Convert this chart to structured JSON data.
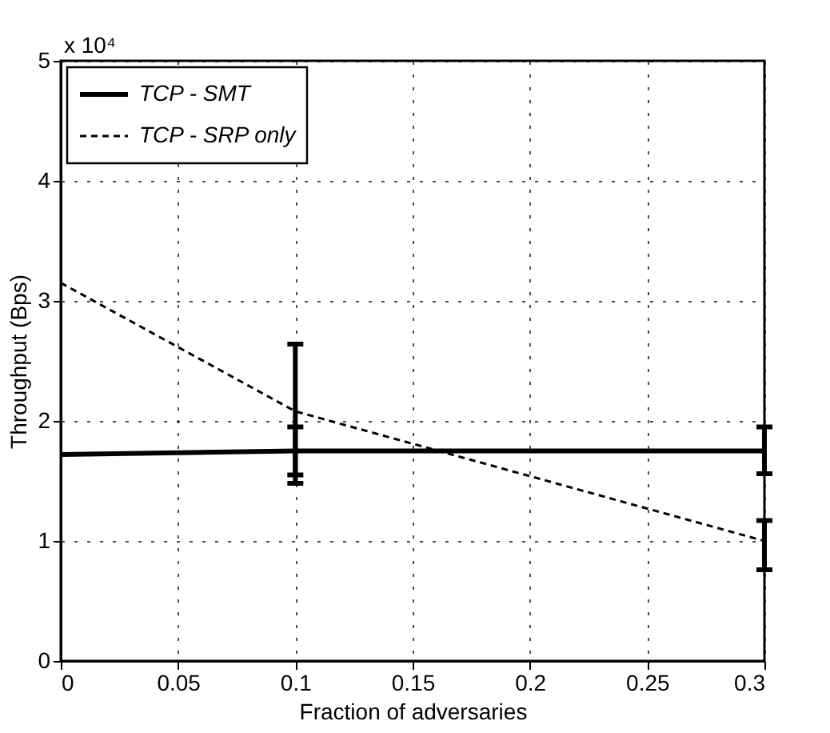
{
  "chart_data": {
    "type": "line",
    "xlabel": "Fraction of adversaries",
    "ylabel": "Throughput (Bps)",
    "annotations": [
      "x 10⁴"
    ],
    "x": [
      0,
      0.1,
      0.3
    ],
    "series": [
      {
        "name": "TCP - SMT",
        "color": "#000000",
        "line_style": "solid",
        "values": [
          1.72,
          1.75,
          1.75
        ],
        "errors": [
          null,
          [
            1.48,
            1.95
          ],
          [
            1.56,
            1.95
          ]
        ]
      },
      {
        "name": "TCP - SRP only",
        "color": "#000000",
        "line_style": "dashed",
        "values": [
          3.15,
          2.08,
          1.0
        ],
        "errors": [
          null,
          [
            1.55,
            2.64
          ],
          [
            0.76,
            1.17
          ]
        ]
      }
    ],
    "xlim": [
      0,
      0.3
    ],
    "xticks": [
      0,
      0.05,
      0.1,
      0.15,
      0.2,
      0.25,
      0.3
    ],
    "ylim": [
      0,
      5
    ],
    "yticks": [
      0,
      1,
      2,
      3,
      4,
      5
    ],
    "grid": true,
    "legend": "top left",
    "marker": "none"
  }
}
